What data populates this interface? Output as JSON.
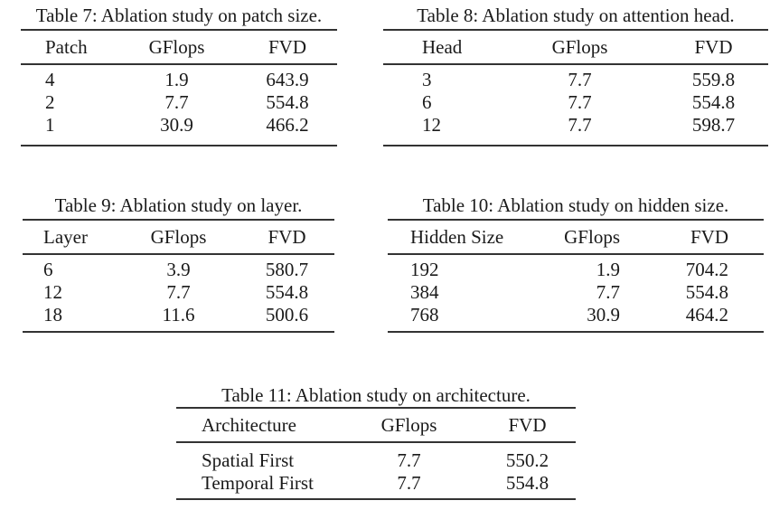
{
  "page": {
    "background_color": "#ffffff",
    "text_color": "#1a1a1a",
    "rule_color": "#333333"
  },
  "tables": [
    {
      "id": "table-7",
      "caption": "Table 7: Ablation study on patch size.",
      "columns": [
        "Patch",
        "GFlops",
        "FVD"
      ],
      "rows": [
        [
          "4",
          "1.9",
          "643.9"
        ],
        [
          "2",
          "7.7",
          "554.8"
        ],
        [
          "1",
          "30.9",
          "466.2"
        ]
      ]
    },
    {
      "id": "table-8",
      "caption": "Table 8: Ablation study on attention head.",
      "columns": [
        "Head",
        "GFlops",
        "FVD"
      ],
      "rows": [
        [
          "3",
          "7.7",
          "559.8"
        ],
        [
          "6",
          "7.7",
          "554.8"
        ],
        [
          "12",
          "7.7",
          "598.7"
        ]
      ]
    },
    {
      "id": "table-9",
      "caption": "Table 9: Ablation study on layer.",
      "columns": [
        "Layer",
        "GFlops",
        "FVD"
      ],
      "rows": [
        [
          "6",
          "3.9",
          "580.7"
        ],
        [
          "12",
          "7.7",
          "554.8"
        ],
        [
          "18",
          "11.6",
          "500.6"
        ]
      ]
    },
    {
      "id": "table-10",
      "caption": "Table 10: Ablation study on hidden size.",
      "columns": [
        "Hidden Size",
        "GFlops",
        "FVD"
      ],
      "rows": [
        [
          "192",
          "1.9",
          "704.2"
        ],
        [
          "384",
          "7.7",
          "554.8"
        ],
        [
          "768",
          "30.9",
          "464.2"
        ]
      ]
    },
    {
      "id": "table-11",
      "caption": "Table 11: Ablation study on architecture.",
      "columns": [
        "Architecture",
        "GFlops",
        "FVD"
      ],
      "rows": [
        [
          "Spatial First",
          "7.7",
          "550.2"
        ],
        [
          "Temporal First",
          "7.7",
          "554.8"
        ]
      ]
    }
  ]
}
